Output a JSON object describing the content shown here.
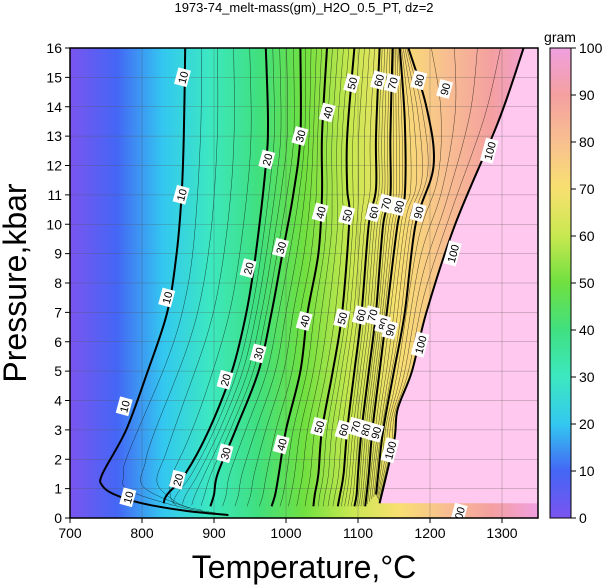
{
  "chart_data": {
    "type": "contour",
    "title": "1973-74_melt-mass(gm)_H2O_0.5_PT, dz=2",
    "xlabel": "Temperature,°C",
    "ylabel": "Pressure,kbar",
    "xlim": [
      700,
      1350
    ],
    "ylim": [
      0,
      16
    ],
    "xticks": [
      700,
      800,
      900,
      1000,
      1100,
      1200,
      1300
    ],
    "yticks": [
      0,
      1,
      2,
      3,
      4,
      5,
      6,
      7,
      8,
      9,
      10,
      11,
      12,
      13,
      14,
      15,
      16
    ],
    "grid": true,
    "colorbar": {
      "label": "gram",
      "min": 0,
      "max": 100,
      "ticks": [
        0,
        10,
        20,
        30,
        40,
        50,
        60,
        70,
        80,
        90,
        100
      ],
      "colors": [
        "#7a55f0",
        "#4466f5",
        "#33c8f0",
        "#3ce8c0",
        "#40e080",
        "#70e040",
        "#c8e850",
        "#f8e070",
        "#f8c090",
        "#f4a0a0",
        "#f0a0e0"
      ]
    },
    "contours": [
      {
        "level": 10,
        "points": [
          [
            860,
            16
          ],
          [
            858,
            13
          ],
          [
            855,
            11
          ],
          [
            848,
            9
          ],
          [
            835,
            7
          ],
          [
            808,
            5
          ],
          [
            778,
            3
          ],
          [
            745,
            1.5
          ],
          [
            745,
            1.1
          ],
          [
            762,
            0.8
          ],
          [
            800,
            0.5
          ],
          [
            860,
            0.25
          ],
          [
            920,
            0.1
          ]
        ]
      },
      {
        "level": 20,
        "points": [
          [
            972,
            16
          ],
          [
            975,
            13.5
          ],
          [
            972,
            12
          ],
          [
            958,
            9
          ],
          [
            945,
            7
          ],
          [
            925,
            5
          ],
          [
            893,
            3
          ],
          [
            860,
            1.5
          ],
          [
            835,
            0.8
          ],
          [
            830,
            0.5
          ]
        ]
      },
      {
        "level": 30,
        "points": [
          [
            1020,
            16
          ],
          [
            1020,
            13
          ],
          [
            1010,
            11
          ],
          [
            995,
            9
          ],
          [
            980,
            7
          ],
          [
            962,
            5
          ],
          [
            930,
            3
          ],
          [
            905,
            1.5
          ],
          [
            900,
            0.8
          ],
          [
            895,
            0.4
          ]
        ]
      },
      {
        "level": 40,
        "points": [
          [
            1057,
            16
          ],
          [
            1050,
            13
          ],
          [
            1050,
            11
          ],
          [
            1045,
            9
          ],
          [
            1030,
            7
          ],
          [
            1020,
            5
          ],
          [
            1000,
            3
          ],
          [
            990,
            1.5
          ],
          [
            985,
            0.8
          ],
          [
            980,
            0.4
          ]
        ]
      },
      {
        "level": 50,
        "points": [
          [
            1095,
            16
          ],
          [
            1085,
            13
          ],
          [
            1085,
            11.2
          ],
          [
            1088,
            10.2
          ],
          [
            1078,
            7
          ],
          [
            1065,
            5
          ],
          [
            1050,
            3
          ],
          [
            1045,
            1.5
          ],
          [
            1040,
            0.8
          ],
          [
            1038,
            0.4
          ]
        ]
      },
      {
        "level": 60,
        "points": [
          [
            1130,
            16
          ],
          [
            1125,
            13
          ],
          [
            1125,
            11.2
          ],
          [
            1115,
            10
          ],
          [
            1105,
            7
          ],
          [
            1095,
            5
          ],
          [
            1085,
            3
          ],
          [
            1080,
            1.5
          ],
          [
            1075,
            0.8
          ],
          [
            1072,
            0.4
          ]
        ]
      },
      {
        "level": 70,
        "points": [
          [
            1148,
            16
          ],
          [
            1145,
            13
          ],
          [
            1145,
            11
          ],
          [
            1135,
            10
          ],
          [
            1125,
            7
          ],
          [
            1115,
            5
          ],
          [
            1105,
            3
          ],
          [
            1100,
            1.5
          ],
          [
            1098,
            0.8
          ],
          [
            1095,
            0.4
          ]
        ]
      },
      {
        "level": 80,
        "points": [
          [
            1158,
            16
          ],
          [
            1165,
            13.5
          ],
          [
            1165,
            11
          ],
          [
            1155,
            10
          ],
          [
            1140,
            7
          ],
          [
            1130,
            5
          ],
          [
            1120,
            3
          ],
          [
            1115,
            1.5
          ],
          [
            1112,
            0.8
          ],
          [
            1110,
            0.4
          ]
        ]
      },
      {
        "level": 90,
        "points": [
          [
            1170,
            16
          ],
          [
            1195,
            14
          ],
          [
            1205,
            12
          ],
          [
            1180,
            10
          ],
          [
            1165,
            7
          ],
          [
            1150,
            5
          ],
          [
            1135,
            3
          ],
          [
            1128,
            1.5
          ],
          [
            1125,
            0.8
          ]
        ]
      },
      {
        "level": 100,
        "points": [
          [
            1330,
            16
          ],
          [
            1295,
            13.5
          ],
          [
            1235,
            10
          ],
          [
            1195,
            7
          ],
          [
            1175,
            5
          ],
          [
            1155,
            3.7
          ],
          [
            1150,
            2.6
          ],
          [
            1130,
            0.5
          ]
        ]
      }
    ],
    "contour_labels": [
      {
        "text": "10",
        "x": 857,
        "y": 15.0
      },
      {
        "text": "10",
        "x": 855,
        "y": 11.0
      },
      {
        "text": "10",
        "x": 835,
        "y": 7.5
      },
      {
        "text": "10",
        "x": 776,
        "y": 3.8
      },
      {
        "text": "10",
        "x": 781,
        "y": 0.7
      },
      {
        "text": "20",
        "x": 974,
        "y": 12.2
      },
      {
        "text": "20",
        "x": 948,
        "y": 8.5
      },
      {
        "text": "20",
        "x": 916,
        "y": 4.7
      },
      {
        "text": "20",
        "x": 850,
        "y": 1.3
      },
      {
        "text": "30",
        "x": 1020,
        "y": 13.0
      },
      {
        "text": "30",
        "x": 993,
        "y": 9.2
      },
      {
        "text": "30",
        "x": 962,
        "y": 5.6
      },
      {
        "text": "30",
        "x": 916,
        "y": 2.2
      },
      {
        "text": "40",
        "x": 1058,
        "y": 13.8
      },
      {
        "text": "40",
        "x": 1048,
        "y": 10.4
      },
      {
        "text": "40",
        "x": 1026,
        "y": 6.7
      },
      {
        "text": "40",
        "x": 994,
        "y": 2.5
      },
      {
        "text": "50",
        "x": 1092,
        "y": 14.8
      },
      {
        "text": "50",
        "x": 1085,
        "y": 10.3
      },
      {
        "text": "50",
        "x": 1078,
        "y": 6.8
      },
      {
        "text": "50",
        "x": 1046,
        "y": 3.1
      },
      {
        "text": "60",
        "x": 1129,
        "y": 14.9
      },
      {
        "text": "60",
        "x": 1122,
        "y": 10.4
      },
      {
        "text": "60",
        "x": 1104,
        "y": 6.9
      },
      {
        "text": "60",
        "x": 1080,
        "y": 3.0
      },
      {
        "text": "70",
        "x": 1148,
        "y": 14.8
      },
      {
        "text": "70",
        "x": 1139,
        "y": 10.7
      },
      {
        "text": "70",
        "x": 1120,
        "y": 6.9
      },
      {
        "text": "70",
        "x": 1097,
        "y": 3.1
      },
      {
        "text": "80",
        "x": 1185,
        "y": 14.9
      },
      {
        "text": "80",
        "x": 1157,
        "y": 10.6
      },
      {
        "text": "80",
        "x": 1135,
        "y": 6.6
      },
      {
        "text": "80",
        "x": 1111,
        "y": 3.0
      },
      {
        "text": "90",
        "x": 1221,
        "y": 14.6
      },
      {
        "text": "90",
        "x": 1184,
        "y": 10.4
      },
      {
        "text": "90",
        "x": 1145,
        "y": 6.4
      },
      {
        "text": "90",
        "x": 1125,
        "y": 2.9
      },
      {
        "text": "100",
        "x": 1283,
        "y": 12.5
      },
      {
        "text": "100",
        "x": 1232,
        "y": 9.0
      },
      {
        "text": "100",
        "x": 1187,
        "y": 5.9
      },
      {
        "text": "100",
        "x": 1145,
        "y": 2.3
      },
      {
        "text": "100",
        "x": 1240,
        "y": 0.07
      }
    ]
  }
}
